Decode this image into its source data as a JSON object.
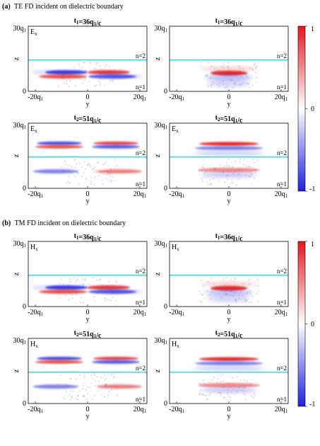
{
  "sections": [
    {
      "tag": "(a)",
      "title": "TE FD incident on dielectric boundary",
      "field_symbol": "E",
      "panels": [
        {
          "time_label": "t",
          "time_sub": "1",
          "time_value": "=36q",
          "time_unit_sub": "1",
          "time_tail": "/c",
          "field_label": "E",
          "field_sub": "x",
          "show_field_label": true,
          "pattern": "split"
        },
        {
          "time_label": "t",
          "time_sub": "1",
          "time_value": "=36q",
          "time_unit_sub": "1",
          "time_tail": "/c",
          "field_label": "E",
          "field_sub": "x",
          "show_field_label": false,
          "pattern": "central"
        },
        {
          "time_label": "t",
          "time_sub": "2",
          "time_value": "=51q",
          "time_unit_sub": "1",
          "time_tail": "/c",
          "field_label": "E",
          "field_sub": "x",
          "show_field_label": true,
          "pattern": "split-late"
        },
        {
          "time_label": "t",
          "time_sub": "2",
          "time_value": "=51q",
          "time_unit_sub": "1",
          "time_tail": "/c",
          "field_label": "E",
          "field_sub": "x",
          "show_field_label": true,
          "pattern": "central-late"
        }
      ]
    },
    {
      "tag": "(b)",
      "title": "TM FD incident on dielectric boundary",
      "field_symbol": "H",
      "panels": [
        {
          "time_label": "t",
          "time_sub": "1",
          "time_value": "=36q",
          "time_unit_sub": "1",
          "time_tail": "/c",
          "field_label": "H",
          "field_sub": "x",
          "show_field_label": true,
          "pattern": "split"
        },
        {
          "time_label": "t",
          "time_sub": "1",
          "time_value": "=36q",
          "time_unit_sub": "1",
          "time_tail": "/c",
          "field_label": "H",
          "field_sub": "x",
          "show_field_label": true,
          "pattern": "central"
        },
        {
          "time_label": "t",
          "time_sub": "2",
          "time_value": "=51q",
          "time_unit_sub": "1",
          "time_tail": "/c",
          "field_label": "H",
          "field_sub": "x",
          "show_field_label": true,
          "pattern": "split-late"
        },
        {
          "time_label": "t",
          "time_sub": "2",
          "time_value": "=51q",
          "time_unit_sub": "1",
          "time_tail": "/c",
          "field_label": "H",
          "field_sub": "x",
          "show_field_label": true,
          "pattern": "central-late"
        }
      ]
    }
  ],
  "axes": {
    "xlabel": "y",
    "ylabel": "z",
    "xticks": [
      "-20q",
      "0",
      "20q"
    ],
    "xtick_sub": "1",
    "yticks": [
      "30q",
      "0"
    ],
    "ytick_sub": "1",
    "region_upper": "n=2",
    "region_lower": "n=1"
  },
  "colorbar": {
    "ticks": [
      "1",
      "0",
      "-1"
    ],
    "color_max": "#e8141c",
    "color_mid": "#ffffff",
    "color_min": "#1f1fe0"
  },
  "colors": {
    "interface_line": "#20d8e6",
    "positive": "#e01818",
    "negative": "#1a1ae0"
  }
}
